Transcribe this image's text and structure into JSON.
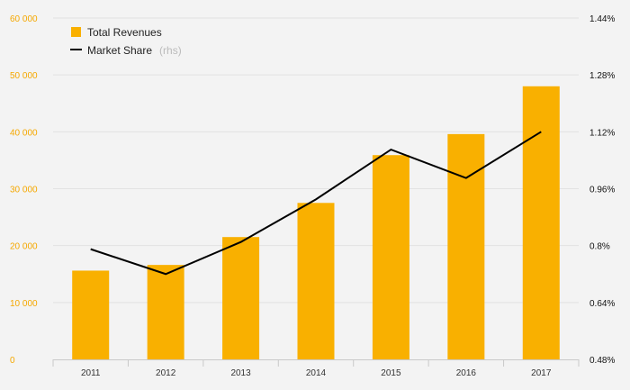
{
  "chart_data": {
    "type": "bar",
    "categories": [
      "2011",
      "2012",
      "2013",
      "2014",
      "2015",
      "2016",
      "2017"
    ],
    "series": [
      {
        "name": "Total Revenues",
        "type": "bar",
        "axis": "left",
        "color": "#f9b000",
        "values": [
          15600,
          16600,
          21500,
          27500,
          35900,
          39600,
          48000
        ]
      },
      {
        "name": "Market Share",
        "name_note": "(rhs)",
        "type": "line",
        "axis": "right",
        "color": "#000000",
        "values": [
          0.79,
          0.72,
          0.81,
          0.93,
          1.07,
          0.99,
          1.12
        ]
      }
    ],
    "y_left": {
      "ylim": [
        0,
        60000
      ],
      "ticks": [
        0,
        10000,
        20000,
        30000,
        40000,
        50000,
        60000
      ],
      "tick_labels": [
        "0",
        "10 000",
        "20 000",
        "30 000",
        "40 000",
        "50 000",
        "60 000"
      ],
      "label_color": "#f5a800"
    },
    "y_right": {
      "ylim": [
        0.48,
        1.44
      ],
      "ticks": [
        0.48,
        0.64,
        0.8,
        0.96,
        1.12,
        1.28,
        1.44
      ],
      "tick_labels": [
        "0.48%",
        "0.64%",
        "0.8%",
        "0.96%",
        "1.12%",
        "1.28%",
        "1.44%"
      ],
      "label_color": "#111111"
    },
    "grid": true,
    "legend_position": "top-left"
  }
}
